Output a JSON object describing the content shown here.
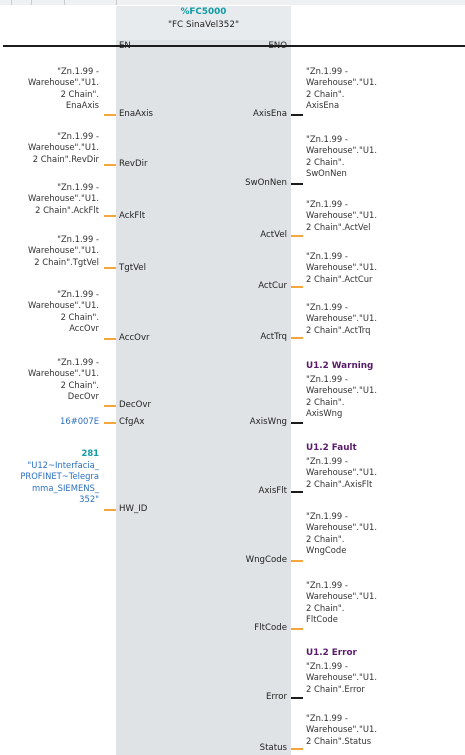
{
  "block": {
    "number": "%FC5000",
    "name": "\"FC SinaVel352\""
  },
  "inputs": [
    {
      "pin": "EN",
      "operand": ""
    },
    {
      "pin": "EnaAxis",
      "operand": "\"Zn.1.99 -\nWarehouse\".\"U1.\n2 Chain\".\nEnaAxis"
    },
    {
      "pin": "RevDir",
      "operand": "\"Zn.1.99 -\nWarehouse\".\"U1.\n2 Chain\".RevDir"
    },
    {
      "pin": "AckFlt",
      "operand": "\"Zn.1.99 -\nWarehouse\".\"U1.\n2 Chain\".AckFlt"
    },
    {
      "pin": "TgtVel",
      "operand": "\"Zn.1.99 -\nWarehouse\".\"U1.\n2 Chain\".TgtVel"
    },
    {
      "pin": "AccOvr",
      "operand": "\"Zn.1.99 -\nWarehouse\".\"U1.\n2 Chain\".\nAccOvr"
    },
    {
      "pin": "DecOvr",
      "operand": "\"Zn.1.99 -\nWarehouse\".\"U1.\n2 Chain\".\nDecOvr"
    },
    {
      "pin": "CfgAx",
      "operand": "16#007E"
    },
    {
      "pin": "HW_ID",
      "operand_value": "281",
      "operand": "\"U12~Interfacia_\nPROFINET~Telegra\nmma_SIEMENS_\n352\""
    }
  ],
  "outputs": [
    {
      "pin": "ENO",
      "title": "",
      "operand": ""
    },
    {
      "pin": "AxisEna",
      "title": "",
      "operand": "\"Zn.1.99 -\nWarehouse\".\"U1.\n2 Chain\".\nAxisEna"
    },
    {
      "pin": "SwOnNen",
      "title": "",
      "operand": "\"Zn.1.99 -\nWarehouse\".\"U1.\n2 Chain\".\nSwOnNen"
    },
    {
      "pin": "ActVel",
      "title": "",
      "operand": "\"Zn.1.99 -\nWarehouse\".\"U1.\n2 Chain\".ActVel"
    },
    {
      "pin": "ActCur",
      "title": "",
      "operand": "\"Zn.1.99 -\nWarehouse\".\"U1.\n2 Chain\".ActCur"
    },
    {
      "pin": "ActTrq",
      "title": "",
      "operand": "\"Zn.1.99 -\nWarehouse\".\"U1.\n2 Chain\".ActTrq"
    },
    {
      "pin": "AxisWng",
      "title": "U1.2 Warning",
      "operand": "\"Zn.1.99 -\nWarehouse\".\"U1.\n2 Chain\".\nAxisWng"
    },
    {
      "pin": "AxisFlt",
      "title": "U1.2 Fault",
      "operand": "\"Zn.1.99 -\nWarehouse\".\"U1.\n2 Chain\".AxisFlt"
    },
    {
      "pin": "WngCode",
      "title": "",
      "operand": "\"Zn.1.99 -\nWarehouse\".\"U1.\n2 Chain\".\nWngCode"
    },
    {
      "pin": "FltCode",
      "title": "",
      "operand": "\"Zn.1.99 -\nWarehouse\".\"U1.\n2 Chain\".\nFltCode"
    },
    {
      "pin": "Error",
      "title": "U1.2 Error",
      "operand": "\"Zn.1.99 -\nWarehouse\".\"U1.\n2 Chain\".Error"
    },
    {
      "pin": "Status",
      "title": "",
      "operand": "\"Zn.1.99 -\nWarehouse\".\"U1.\n2 Chain\".Status"
    }
  ],
  "colors": {
    "block_fill": "#dfe3e6",
    "connector": "#f2a63b",
    "block_number": "#119ba4",
    "constant": "#2b6fc2",
    "comment_title": "#5a1a6b"
  }
}
